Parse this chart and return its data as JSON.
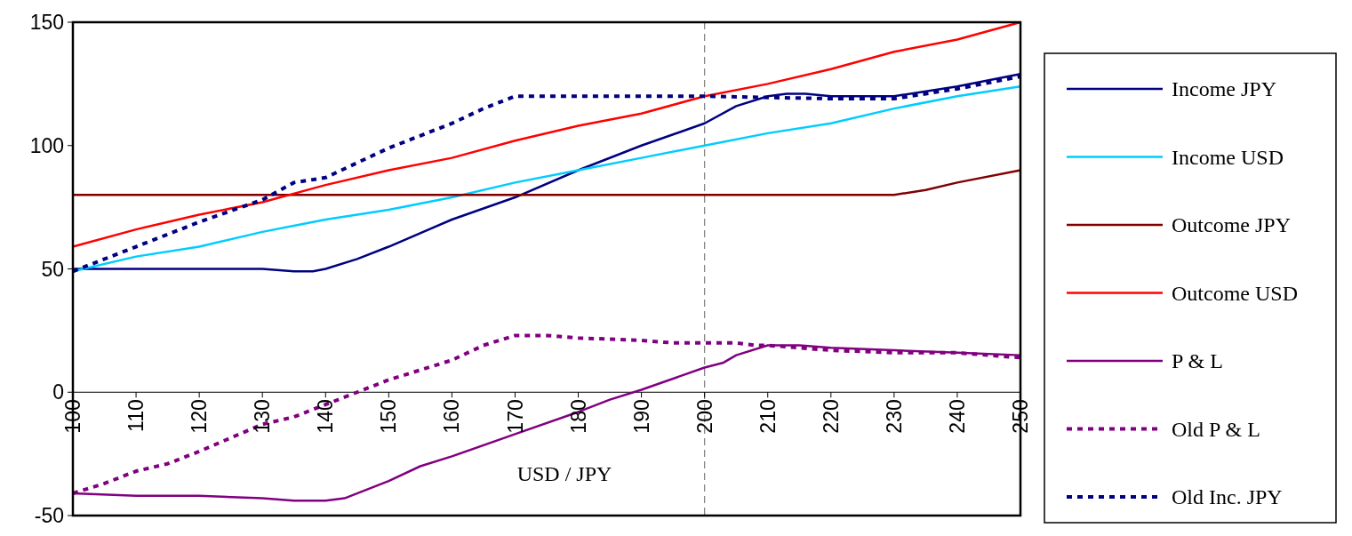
{
  "chart_data": {
    "type": "line",
    "xlabel": "USD / JPY",
    "xlim": [
      100,
      250
    ],
    "ylim": [
      -50,
      150
    ],
    "xticks": [
      100,
      110,
      120,
      130,
      140,
      150,
      160,
      170,
      180,
      190,
      200,
      210,
      220,
      230,
      240,
      250
    ],
    "yticks": [
      -50,
      0,
      50,
      100,
      150
    ],
    "grid": false,
    "legend": "right",
    "marker": "none",
    "ref_lines": [
      {
        "axis": "x",
        "value": 200,
        "color": "#808080",
        "line_style": "dashed"
      }
    ],
    "series": [
      {
        "name": "Income JPY",
        "color": "#000080",
        "line_style": "solid",
        "x": [
          100,
          110,
          120,
          130,
          135,
          138,
          140,
          145,
          150,
          160,
          170,
          180,
          190,
          200,
          205,
          210,
          213,
          216,
          220,
          230,
          240,
          250
        ],
        "values": [
          50,
          50,
          50,
          50,
          49,
          49,
          50,
          54,
          59,
          70,
          79,
          90,
          100,
          109,
          116,
          120,
          121,
          121,
          120,
          120,
          124,
          129
        ]
      },
      {
        "name": "Income USD",
        "color": "#00ccff",
        "line_style": "solid",
        "x": [
          100,
          110,
          120,
          130,
          140,
          150,
          160,
          170,
          180,
          190,
          200,
          210,
          220,
          230,
          240,
          250
        ],
        "values": [
          49,
          55,
          59,
          65,
          70,
          74,
          79,
          85,
          90,
          95,
          100,
          105,
          109,
          115,
          120,
          124
        ]
      },
      {
        "name": "Outcome JPY",
        "color": "#800000",
        "line_style": "solid",
        "x": [
          100,
          230,
          235,
          240,
          250
        ],
        "values": [
          80,
          80,
          82,
          85,
          90
        ]
      },
      {
        "name": "Outcome USD",
        "color": "#ff0000",
        "line_style": "solid",
        "x": [
          100,
          110,
          120,
          130,
          140,
          150,
          160,
          170,
          180,
          190,
          200,
          210,
          220,
          230,
          240,
          250
        ],
        "values": [
          59,
          66,
          72,
          77,
          84,
          90,
          95,
          102,
          108,
          113,
          120,
          125,
          131,
          138,
          143,
          150
        ]
      },
      {
        "name": "P & L",
        "color": "#800080",
        "line_style": "solid",
        "x": [
          100,
          110,
          120,
          130,
          135,
          140,
          143,
          150,
          155,
          160,
          170,
          180,
          185,
          190,
          200,
          203,
          205,
          210,
          215,
          220,
          230,
          240,
          250
        ],
        "values": [
          -41,
          -42,
          -42,
          -43,
          -44,
          -44,
          -43,
          -36,
          -30,
          -26,
          -17,
          -8,
          -3,
          1,
          10,
          12,
          15,
          19,
          19,
          18,
          17,
          16,
          15
        ]
      },
      {
        "name": "Old P & L",
        "color": "#800080",
        "line_style": "dotted",
        "x": [
          100,
          105,
          110,
          115,
          120,
          130,
          135,
          140,
          145,
          150,
          155,
          160,
          165,
          170,
          175,
          180,
          190,
          195,
          200,
          205,
          208,
          210,
          220,
          230,
          240,
          250
        ],
        "values": [
          -41,
          -37,
          -32,
          -29,
          -24,
          -13,
          -10,
          -5,
          0,
          5,
          9,
          13,
          19,
          23,
          23,
          22,
          21,
          20,
          20,
          20,
          19,
          19,
          17,
          16,
          16,
          14
        ]
      },
      {
        "name": "Old Inc. JPY",
        "color": "#000080",
        "line_style": "dotted",
        "x": [
          100,
          110,
          120,
          130,
          135,
          140,
          150,
          160,
          165,
          170,
          180,
          200,
          220,
          230,
          240,
          250
        ],
        "values": [
          49,
          59,
          69,
          78,
          85,
          87,
          99,
          109,
          115,
          120,
          120,
          120,
          119,
          119,
          123,
          128
        ]
      }
    ]
  }
}
